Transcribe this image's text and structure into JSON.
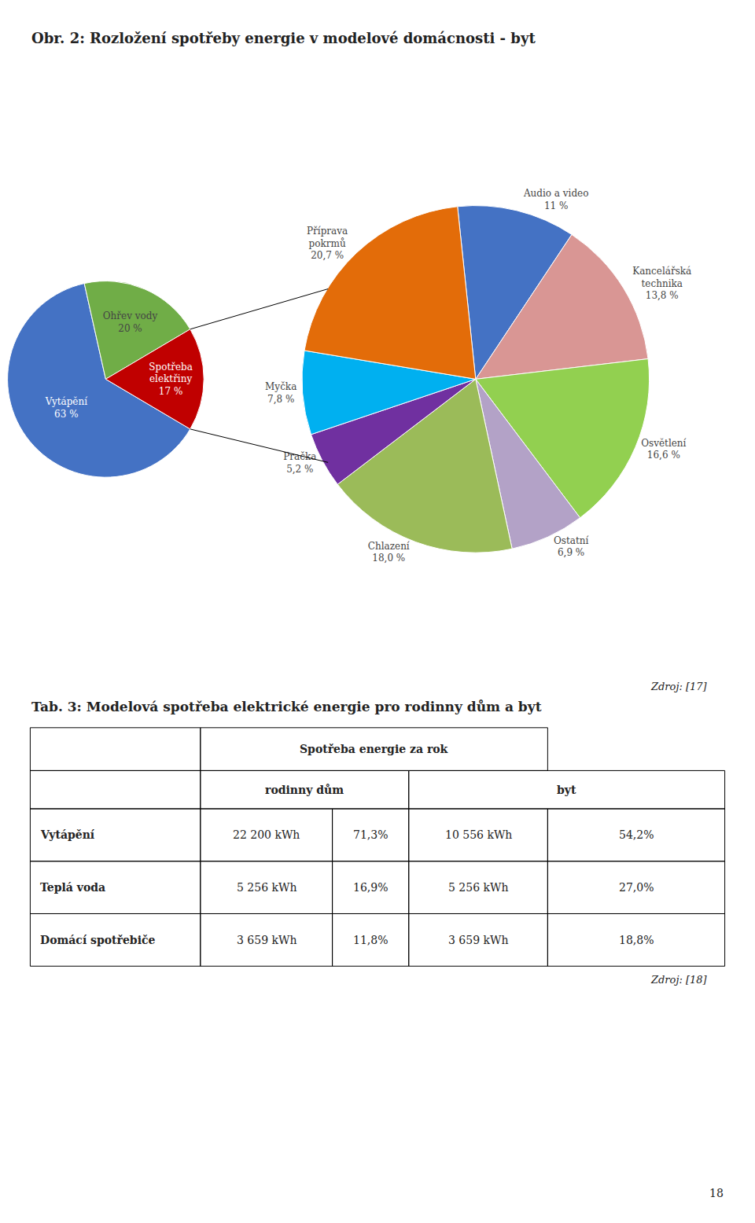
{
  "page_number": "18",
  "chart_data": [
    {
      "type": "pie",
      "title": "Obr. 2: Rozložení spotřeby energie v modelové domácnosti - byt",
      "categories": [
        "Vytápění",
        "Ohřev vody",
        "Spotřeba\nelektřiny"
      ],
      "values": [
        63,
        20,
        17
      ],
      "value_labels": [
        "63 %",
        "20 %",
        "17 %"
      ],
      "colors": [
        "#4472C4",
        "#70AD47",
        "#C00000"
      ],
      "data_labels": true
    },
    {
      "type": "pie",
      "categories": [
        "Audio a video",
        "Kancelářská\ntechnika",
        "Osvětlení",
        "Ostatní",
        "Chlazení",
        "Pračka",
        "Myčka",
        "Příprava\npokrmů"
      ],
      "values": [
        11.0,
        13.8,
        16.6,
        6.9,
        18.0,
        5.2,
        7.8,
        20.7
      ],
      "value_labels": [
        "11 %",
        "13,8 %",
        "16,6 %",
        "6,9 %",
        "18,0 %",
        "5,2 %",
        "7,8 %",
        "20,7 %"
      ],
      "colors": [
        "#4472C4",
        "#D99694",
        "#92D050",
        "#B3A2C7",
        "#9BBB59",
        "#7030A0",
        "#00B0F0",
        "#E36C09"
      ],
      "data_labels": true,
      "source": "Zdroj: [17]"
    },
    {
      "type": "table",
      "title": "Tab. 3: Modelová spotřeba elektrické energie pro rodinny dům a byt",
      "header": "Spotřeba energie za rok",
      "categories": [
        "Vytápění",
        "Teplá voda",
        "Domácí spotřebiče"
      ],
      "series": [
        {
          "name": "rodinny dům",
          "values": [
            22200,
            5256,
            3659
          ],
          "value_labels": [
            "22 200 kWh",
            "5 256 kWh",
            "3 659 kWh"
          ],
          "shares": [
            71.3,
            16.9,
            11.8
          ],
          "share_labels": [
            "71,3%",
            "16,9%",
            "11,8%"
          ]
        },
        {
          "name": "byt",
          "values": [
            10556,
            5256,
            3659
          ],
          "value_labels": [
            "10 556 kWh",
            "5 256 kWh",
            "3 659 kWh"
          ],
          "shares": [
            54.2,
            27.0,
            18.8
          ],
          "share_labels": [
            "54,2%",
            "27,0%",
            "18,8%"
          ]
        }
      ],
      "source": "Zdroj: [18]"
    }
  ]
}
